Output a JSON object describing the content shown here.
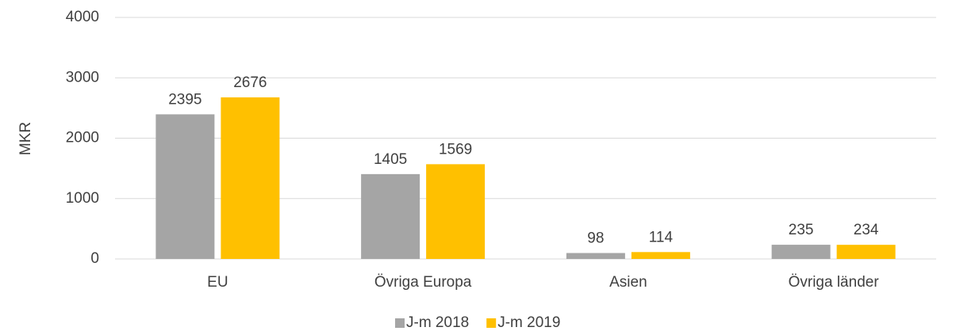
{
  "chart_data": {
    "type": "bar",
    "y_label": "MKR",
    "categories": [
      "EU",
      "Övriga Europa",
      "Asien",
      "Övriga länder"
    ],
    "series": [
      {
        "name": "J-m 2018",
        "color": "#a5a5a5",
        "values": [
          2395,
          1405,
          98,
          235
        ]
      },
      {
        "name": "J-m 2019",
        "color": "#ffc000",
        "values": [
          2676,
          1569,
          114,
          234
        ]
      }
    ],
    "ylim": [
      0,
      4000
    ],
    "yticks": [
      0,
      1000,
      2000,
      3000,
      4000
    ],
    "grid": true,
    "legend": "bottom"
  }
}
